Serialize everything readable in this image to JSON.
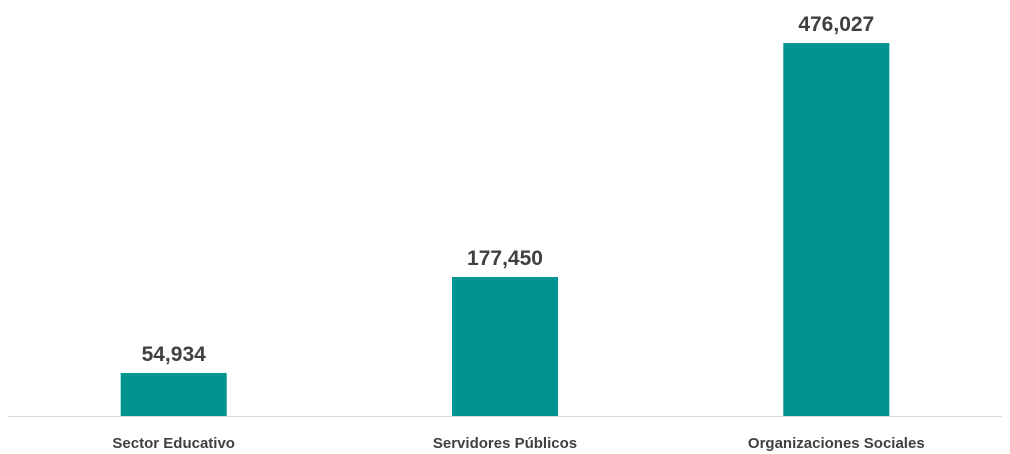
{
  "chart_data": {
    "type": "bar",
    "categories": [
      "Sector Educativo",
      "Servidores Públicos",
      "Organizaciones Sociales"
    ],
    "values": [
      54934,
      177450,
      476027
    ],
    "value_labels": [
      "54,934",
      "177,450",
      "476,027"
    ],
    "title": "",
    "xlabel": "",
    "ylabel": "",
    "ylim": [
      0,
      476027
    ],
    "grid": false,
    "legend": "none",
    "colors": {
      "bar": "#009390",
      "text": "#404040",
      "axis": "#d9d9d9"
    }
  }
}
